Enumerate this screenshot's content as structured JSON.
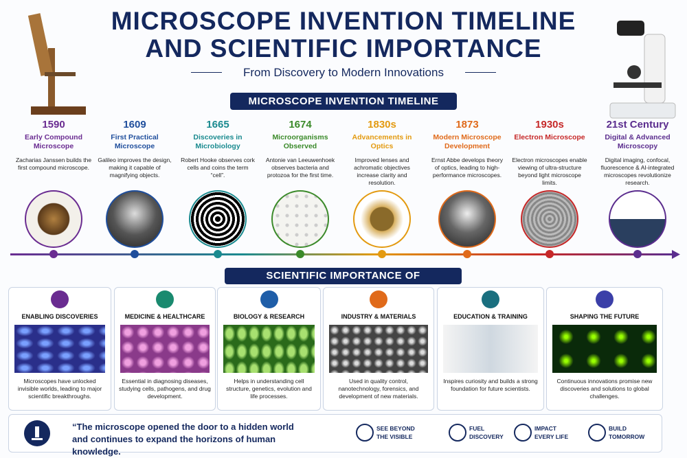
{
  "header": {
    "title_line1": "MICROSCOPE INVENTION TIMELINE",
    "title_line2": "AND SCIENTIFIC IMPORTANCE",
    "subtitle": "From Discovery to Modern Innovations"
  },
  "timeline": {
    "heading": "MICROSCOPE INVENTION TIMELINE",
    "events": [
      {
        "year": "1590",
        "title": "Early Compound Microscope",
        "description": "Zacharias Janssen builds the first compound microscope.",
        "color": "#6a2c91"
      },
      {
        "year": "1609",
        "title": "First Practical Microscope",
        "description": "Galileo improves the design, making it capable of magnifying objects.",
        "color": "#1f4e9c"
      },
      {
        "year": "1665",
        "title": "Discoveries in Microbiology",
        "description": "Robert Hooke observes cork cells and coins the term “cell”.",
        "color": "#1a8a8f"
      },
      {
        "year": "1674",
        "title": "Microorganisms Observed",
        "description": "Antonie van Leeuwenhoek observes bacteria and protozoa for the first time.",
        "color": "#3b8a2a"
      },
      {
        "year": "1830s",
        "title": "Advancements in Optics",
        "description": "Improved lenses and achromatic objectives increase clarity and resolution.",
        "color": "#e39a10"
      },
      {
        "year": "1873",
        "title": "Modern Microscope Development",
        "description": "Ernst Abbe develops theory of optics, leading to high-performance microscopes.",
        "color": "#e06a1a"
      },
      {
        "year": "1930s",
        "title": "Electron Microscope",
        "description": "Electron microscopes enable viewing of ultra-structure beyond light microscope limits.",
        "color": "#c62828"
      },
      {
        "year": "21st Century",
        "title": "Digital & Advanced Microscopy",
        "description": "Digital imaging, confocal, fluorescence & AI-integrated microscopes revolutionize research.",
        "color": "#5b2d8e"
      }
    ]
  },
  "importance": {
    "heading": "SCIENTIFIC IMPORTANCE OF MICROSCOPES",
    "cards": [
      {
        "title": "ENABLING DISCOVERIES",
        "text": "Microscopes have unlocked invisible worlds, leading to major scientific breakthroughs.",
        "color": "#6a2c91"
      },
      {
        "title": "MEDICINE & HEALTHCARE",
        "text": "Essential in diagnosing diseases, studying cells, pathogens, and drug development.",
        "color": "#1a8a6f"
      },
      {
        "title": "BIOLOGY & RESEARCH",
        "text": "Helps in understanding cell structure, genetics, evolution and life processes.",
        "color": "#1f5ea8"
      },
      {
        "title": "INDUSTRY & MATERIALS",
        "text": "Used in quality control, nanotechnology, forensics, and development of new materials.",
        "color": "#e06a1a"
      },
      {
        "title": "EDUCATION & TRAINING",
        "text": "Inspires curiosity and builds a strong foundation for future scientists.",
        "color": "#1a6f7f"
      },
      {
        "title": "SHAPING THE FUTURE",
        "text": "Continuous innovations promise new discoveries and solutions to global challenges.",
        "color": "#3b3fa8"
      }
    ]
  },
  "footer": {
    "quote": "“The microscope opened the door to a hidden world and continues to expand the horizons of human knowledge.",
    "badges": [
      [
        "SEE BEYOND",
        "THE VISIBLE"
      ],
      [
        "FUEL",
        "DISCOVERY"
      ],
      [
        "IMPACT",
        "EVERY LIFE"
      ],
      [
        "BUILD",
        "TOMORROW"
      ]
    ]
  }
}
